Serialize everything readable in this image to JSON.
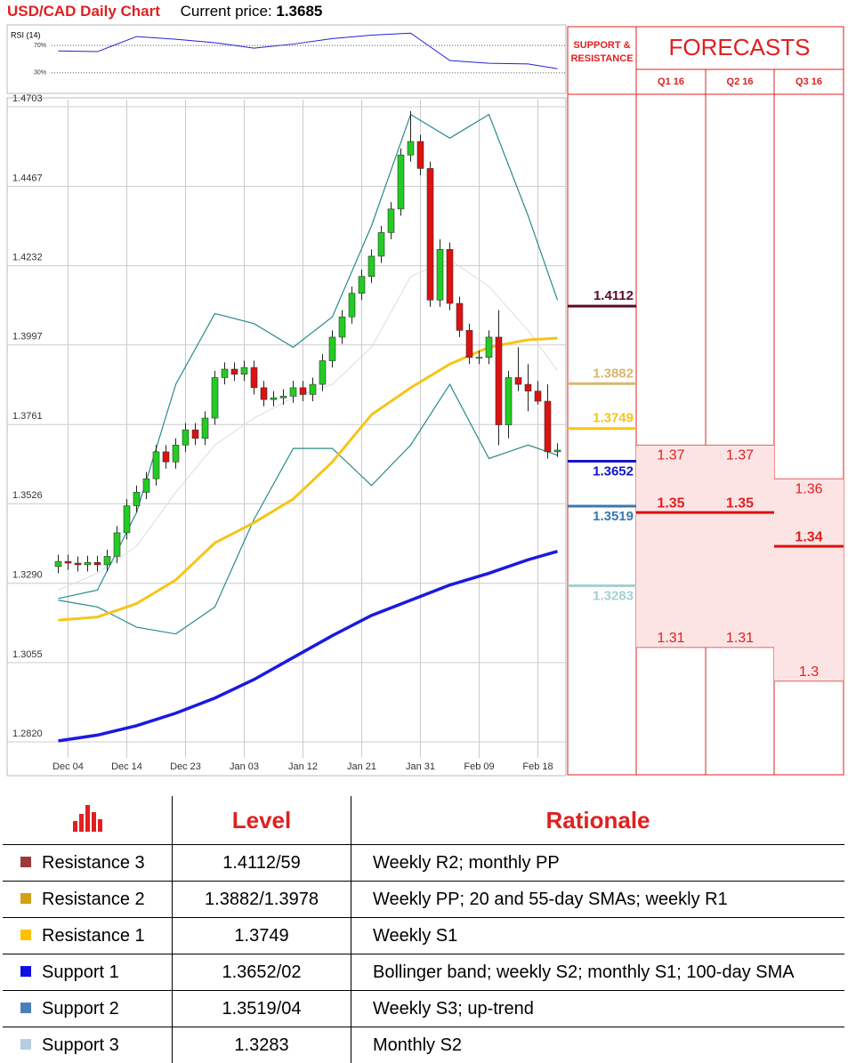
{
  "header": {
    "title": "USD/CAD Daily Chart",
    "price_label": "Current price:",
    "price": 1.3685
  },
  "chart_data": [
    {
      "type": "candlestick",
      "categories": [
        null,
        "Dec 04",
        null,
        null,
        null,
        null,
        null,
        "Dec 14",
        null,
        null,
        null,
        null,
        null,
        "Dec 23",
        null,
        null,
        null,
        null,
        null,
        "Jan 03",
        null,
        null,
        null,
        null,
        null,
        "Jan 12",
        null,
        null,
        null,
        null,
        null,
        "Jan 21",
        null,
        null,
        null,
        null,
        null,
        "Jan 31",
        null,
        null,
        null,
        null,
        null,
        "Feb 09",
        null,
        null,
        null,
        null,
        null,
        "Feb 18",
        null,
        null
      ],
      "open": [
        1.334,
        1.3355,
        1.335,
        1.3345,
        1.3352,
        1.3345,
        1.337,
        1.344,
        1.352,
        1.356,
        1.36,
        1.368,
        1.365,
        1.37,
        1.3745,
        1.372,
        1.378,
        1.39,
        1.3925,
        1.391,
        1.393,
        1.387,
        1.3835,
        1.384,
        1.3845,
        1.387,
        1.385,
        1.388,
        1.395,
        1.402,
        1.408,
        1.415,
        1.42,
        1.426,
        1.433,
        1.44,
        1.456,
        1.46,
        1.452,
        1.413,
        1.428,
        1.412,
        1.404,
        1.396,
        1.396,
        1.402,
        1.376,
        1.39,
        1.388,
        1.386,
        1.383,
        1.368
      ],
      "high": [
        1.3375,
        1.3375,
        1.337,
        1.3372,
        1.3372,
        1.339,
        1.346,
        1.354,
        1.358,
        1.362,
        1.37,
        1.37,
        1.372,
        1.3765,
        1.3765,
        1.38,
        1.392,
        1.3945,
        1.3945,
        1.395,
        1.395,
        1.389,
        1.386,
        1.3865,
        1.389,
        1.389,
        1.39,
        1.397,
        1.404,
        1.41,
        1.417,
        1.422,
        1.428,
        1.435,
        1.442,
        1.458,
        1.469,
        1.462,
        1.454,
        1.431,
        1.43,
        1.414,
        1.406,
        1.398,
        1.404,
        1.41,
        1.392,
        1.399,
        1.394,
        1.389,
        1.388,
        1.3705
      ],
      "low": [
        1.332,
        1.333,
        1.3325,
        1.3325,
        1.3325,
        1.3325,
        1.335,
        1.342,
        1.35,
        1.354,
        1.358,
        1.363,
        1.363,
        1.368,
        1.37,
        1.37,
        1.376,
        1.388,
        1.389,
        1.389,
        1.385,
        1.3815,
        1.3815,
        1.382,
        1.3825,
        1.383,
        1.383,
        1.386,
        1.393,
        1.4,
        1.406,
        1.413,
        1.418,
        1.424,
        1.431,
        1.438,
        1.454,
        1.45,
        1.411,
        1.411,
        1.41,
        1.402,
        1.394,
        1.394,
        1.394,
        1.37,
        1.372,
        1.386,
        1.38,
        1.382,
        1.366,
        1.3665
      ],
      "close": [
        1.3355,
        1.335,
        1.3345,
        1.3352,
        1.3345,
        1.337,
        1.344,
        1.352,
        1.356,
        1.36,
        1.368,
        1.365,
        1.37,
        1.3745,
        1.372,
        1.378,
        1.39,
        1.3925,
        1.391,
        1.393,
        1.387,
        1.3835,
        1.384,
        1.3845,
        1.387,
        1.385,
        1.388,
        1.395,
        1.402,
        1.408,
        1.415,
        1.42,
        1.426,
        1.433,
        1.44,
        1.456,
        1.46,
        1.452,
        1.413,
        1.428,
        1.412,
        1.404,
        1.396,
        1.396,
        1.402,
        1.376,
        1.39,
        1.388,
        1.386,
        1.383,
        1.368,
        1.3685
      ],
      "up_color": "#22cc22",
      "down_color": "#dd1111",
      "series": [
        {
          "color": "#f5c518",
          "x": [
            0,
            4,
            8,
            12,
            16,
            20,
            24,
            28,
            32,
            36,
            40,
            44,
            48,
            51
          ],
          "values": [
            1.3181,
            1.319,
            1.323,
            1.33,
            1.341,
            1.347,
            1.354,
            1.365,
            1.379,
            1.387,
            1.394,
            1.399,
            1.4012,
            1.4017
          ]
        },
        {
          "color": "#1a1ae0",
          "x": [
            0,
            4,
            8,
            12,
            16,
            20,
            24,
            28,
            32,
            36,
            40,
            44,
            48,
            51
          ],
          "values": [
            1.2823,
            1.284,
            1.2868,
            1.2905,
            1.295,
            1.3005,
            1.307,
            1.3135,
            1.3195,
            1.324,
            1.3285,
            1.332,
            1.336,
            1.3385
          ]
        },
        {
          "color": "#2a8a8a",
          "x": [
            0,
            4,
            8,
            12,
            16,
            20,
            24,
            28,
            32,
            36,
            40,
            44,
            48,
            51
          ],
          "values": [
            1.3245,
            1.327,
            1.35,
            1.388,
            1.409,
            1.406,
            1.399,
            1.408,
            1.435,
            1.468,
            1.461,
            1.468,
            1.438,
            1.413
          ]
        },
        {
          "color": "#2a8a8a",
          "x": [
            0,
            4,
            8,
            12,
            16,
            20,
            24,
            28,
            32,
            36,
            40,
            44,
            48,
            51
          ],
          "values": [
            1.324,
            1.322,
            1.316,
            1.314,
            1.322,
            1.348,
            1.369,
            1.369,
            1.358,
            1.37,
            1.388,
            1.366,
            1.37,
            1.367
          ]
        },
        {
          "color": "#dddddd",
          "x": [
            0,
            4,
            8,
            12,
            16,
            20,
            24,
            28,
            32,
            36,
            40,
            44,
            48,
            51
          ],
          "values": [
            1.327,
            1.332,
            1.34,
            1.356,
            1.37,
            1.378,
            1.384,
            1.388,
            1.399,
            1.42,
            1.425,
            1.417,
            1.404,
            1.392
          ]
        }
      ],
      "ylim": [
        1.282,
        1.4703
      ],
      "yticks": [
        1.4703,
        1.4467,
        1.4232,
        1.3997,
        1.3761,
        1.3526,
        {
          "value": 1.329,
          "label": "1.3290"
        },
        1.3055,
        {
          "value": 1.282,
          "label": "1.2820"
        }
      ],
      "grid": true
    },
    {
      "type": "line",
      "title": "RSI (14)",
      "color": "#2222cc",
      "x": [
        0,
        4,
        8,
        12,
        16,
        20,
        24,
        28,
        32,
        36,
        40,
        44,
        48,
        51
      ],
      "values": [
        62,
        61,
        83,
        79,
        74,
        66,
        72,
        80,
        85,
        88,
        48,
        44,
        43,
        36
      ],
      "ylim": [
        0,
        100
      ],
      "yticks": [
        {
          "value": 70,
          "label": "70%"
        },
        {
          "value": 30,
          "label": "30%"
        }
      ]
    }
  ],
  "support_resistance": {
    "title": "SUPPORT & RESISTANCE",
    "levels": [
      {
        "value": 1.4112,
        "color": "#5c0a2a"
      },
      {
        "value": 1.3882,
        "color": "#d9b870"
      },
      {
        "value": 1.3749,
        "color": "#f5c518"
      },
      {
        "value": 1.3652,
        "color": "#1414c8"
      },
      {
        "value": 1.3519,
        "color": "#3a78b0"
      },
      {
        "value": 1.3283,
        "color": "#a8cfd0"
      }
    ]
  },
  "forecasts": {
    "title": "FORECASTS",
    "quarters": [
      {
        "label": "Q1 16",
        "high": 1.37,
        "mid": 1.35,
        "low": 1.31
      },
      {
        "label": "Q2 16",
        "high": 1.37,
        "mid": 1.35,
        "low": 1.31
      },
      {
        "label": "Q3 16",
        "high": 1.36,
        "mid": 1.34,
        "low": 1.3
      }
    ]
  },
  "table": {
    "headers": [
      "Level",
      "Rationale"
    ],
    "colors": [
      "#9b3a3a",
      "#d4a017",
      "#ffc000",
      "#1010e0",
      "#4a7ebb",
      "#b8cce4"
    ],
    "rows": [
      [
        "Resistance 3",
        "1.4112/59",
        "Weekly R2; monthly PP"
      ],
      [
        "Resistance 2",
        "1.3882/1.3978",
        "Weekly PP; 20 and 55-day SMAs; weekly R1"
      ],
      [
        "Resistance 1",
        "1.3749",
        "Weekly S1"
      ],
      [
        "Support 1",
        "1.3652/02",
        "Bollinger band; weekly S2; monthly S1; 100-day SMA"
      ],
      [
        "Support 2",
        "1.3519/04",
        "Weekly S3; up-trend"
      ],
      [
        "Support 3",
        "1.3283",
        "Monthly S2"
      ]
    ]
  }
}
